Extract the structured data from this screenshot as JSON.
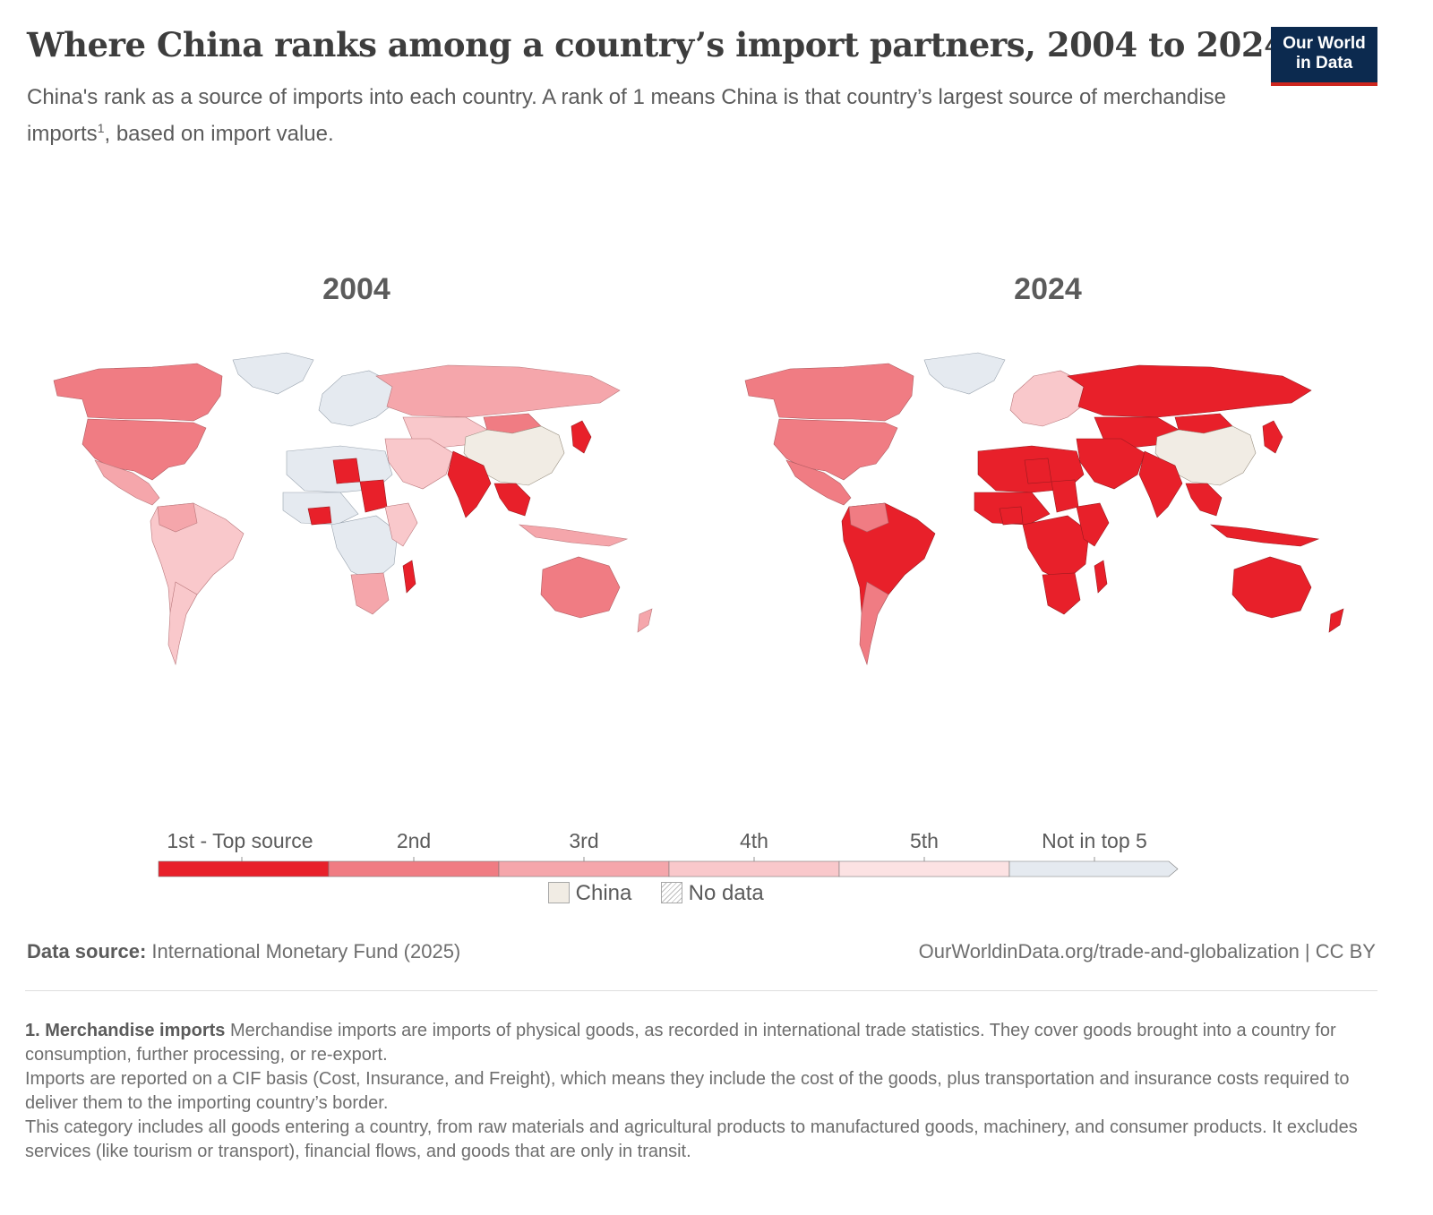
{
  "header": {
    "title": "Where China ranks among a country’s import partners, 2004 to 2024",
    "subtitle_main": "China's rank as a source of imports into each country. A rank of 1 means China is that country’s largest source of merchandise imports",
    "subtitle_sup": "1",
    "subtitle_end": ", based on import value."
  },
  "logo": {
    "line1": "Our World",
    "line2": "in Data",
    "bg": "#0c2a4f",
    "accent": "#ce261e"
  },
  "maps": [
    {
      "year": "2004"
    },
    {
      "year": "2024"
    }
  ],
  "legend": {
    "bins": [
      {
        "label": "1st - Top source",
        "color": "#e8202a"
      },
      {
        "label": "2nd",
        "color": "#f07c83"
      },
      {
        "label": "3rd",
        "color": "#f5a6ab"
      },
      {
        "label": "4th",
        "color": "#f9c8cb"
      },
      {
        "label": "5th",
        "color": "#fce2e3"
      },
      {
        "label": "Not in top 5",
        "color": "#e5eaf0"
      }
    ],
    "china_label": "China",
    "china_color": "#f1ece4",
    "no_data_label": "No data"
  },
  "footer": {
    "source_label": "Data source:",
    "source_value": " International Monetary Fund (2025)",
    "url": "OurWorldinData.org/trade-and-globalization | CC BY",
    "note_title": "1. Merchandise imports",
    "note_1": " Merchandise imports are imports of physical goods, as recorded in international trade statistics. They cover goods brought into a country for consumption, further processing, or re-export.",
    "note_2": "Imports are reported on a CIF basis (Cost, Insurance, and Freight), which means they include the cost of the goods, plus transportation and insurance costs required to deliver them to the importing country’s border.",
    "note_3": "This category includes all goods entering a country, from raw materials and agricultural products to manufactured goods, machinery, and consumer products. It excludes services (like tourism or transport), financial flows, and goods that are only in transit."
  }
}
